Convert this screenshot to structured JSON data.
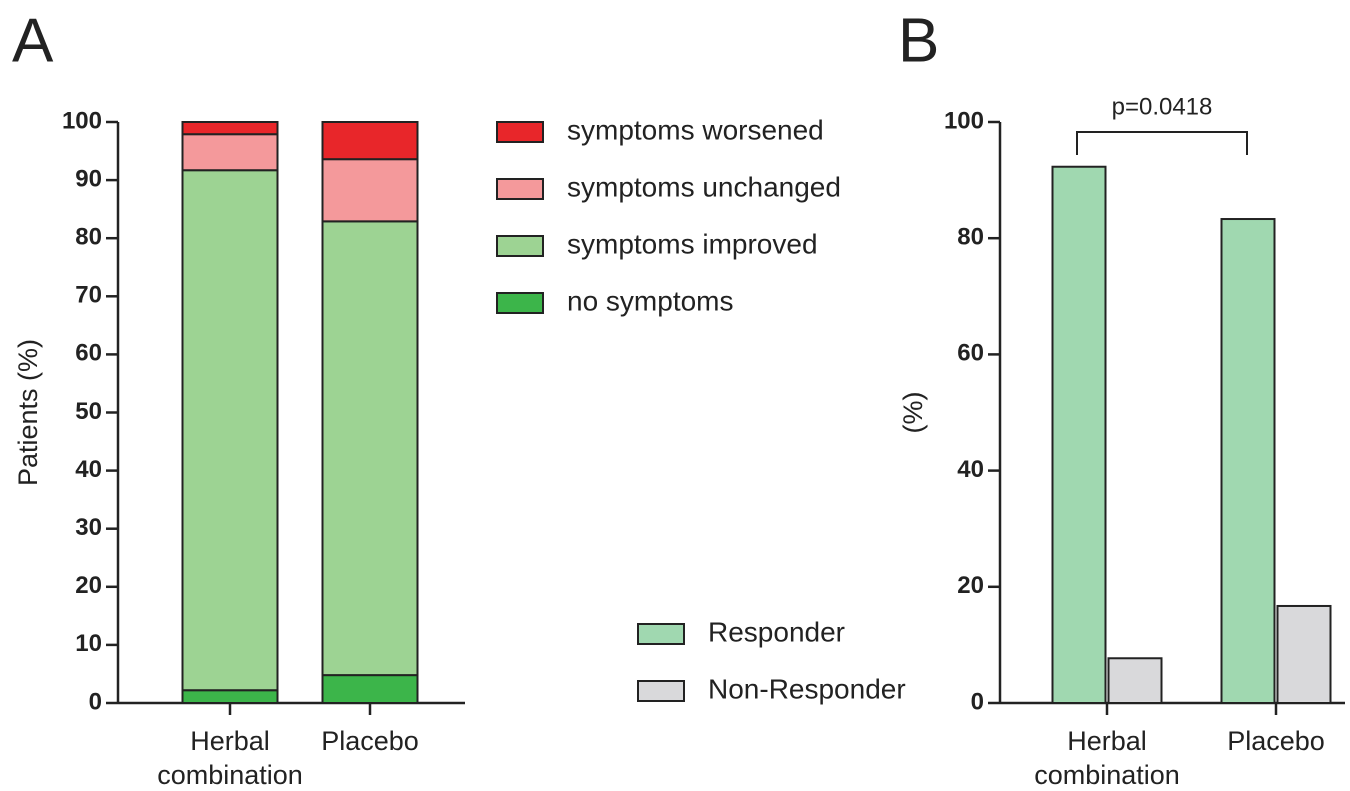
{
  "chart_data": [
    {
      "type": "bar",
      "stacked": true,
      "title": "A",
      "ylabel": "Patients (%)",
      "categories": [
        "Herbal combination",
        "Placebo"
      ],
      "series": [
        {
          "name": "no symptoms",
          "color": "#3cb54a",
          "values": [
            2.2,
            4.8
          ]
        },
        {
          "name": "symptoms improved",
          "color": "#9dd393",
          "values": [
            89.5,
            78.1
          ]
        },
        {
          "name": "symptoms unchanged",
          "color": "#f4999b",
          "values": [
            6.2,
            10.7
          ]
        },
        {
          "name": "symptoms worsened",
          "color": "#e8262a",
          "values": [
            2.1,
            6.4
          ]
        }
      ],
      "ylim": [
        0,
        100
      ],
      "yticks": [
        0,
        10,
        20,
        30,
        40,
        50,
        60,
        70,
        80,
        90,
        100
      ]
    },
    {
      "type": "bar",
      "stacked": false,
      "title": "B",
      "ylabel": "(%)",
      "categories": [
        "Herbal combination",
        "Placebo"
      ],
      "series": [
        {
          "name": "Responder",
          "color": "#a0d8b0",
          "values": [
            92.3,
            83.3
          ]
        },
        {
          "name": "Non-Responder",
          "color": "#d9d9db",
          "values": [
            7.7,
            16.7
          ]
        }
      ],
      "annotation": "p=0.0418",
      "ylim": [
        0,
        100
      ],
      "yticks": [
        0,
        20,
        40,
        60,
        80,
        100
      ]
    }
  ]
}
